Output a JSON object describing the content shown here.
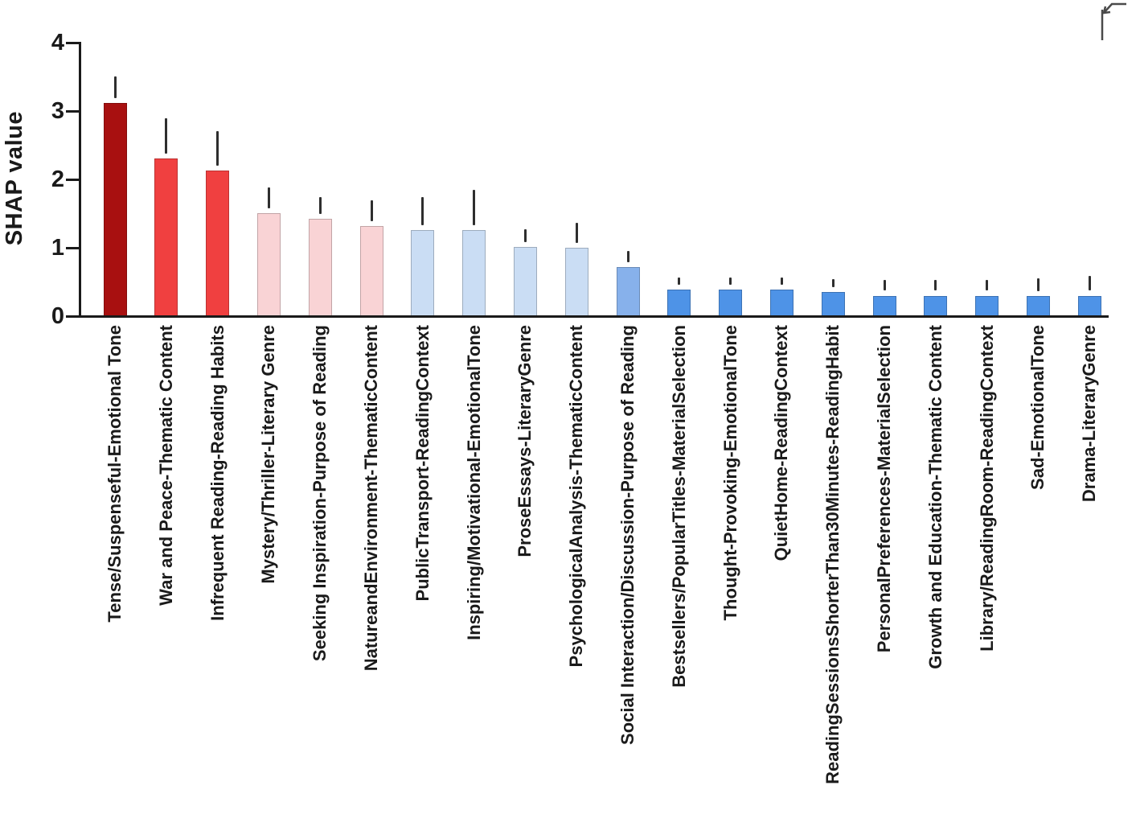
{
  "ui": {
    "corner_icon": "return-left-arrow-icon"
  },
  "chart_data": {
    "type": "bar",
    "title": "",
    "xlabel": "",
    "ylabel": "SHAP value",
    "ylim": [
      0,
      4
    ],
    "yticks": [
      0,
      1,
      2,
      3,
      4
    ],
    "grid": false,
    "legend": "none",
    "error_bars": "upper-only-vertical-lines",
    "error_bar_color": "#2e2e2e",
    "axis_color": "#1a1a1a",
    "categories": [
      "Tense/Suspenseful-Emotional Tone",
      "War and Peace-Thematic Content",
      "Infrequent Reading-Reading Habits",
      "Mystery/Thriller-Literary Genre",
      "Seeking Inspiration-Purpose of Reading",
      "NatureandEnvironment-ThematicContent",
      "PublicTransport-ReadingContext",
      "Inspiring/Motivational-EmotionalTone",
      "ProseEssays-LiteraryGenre",
      "PsychologicalAnalysis-ThematicContent",
      "Social Interaction/Discussion-Purpose of Reading",
      "Bestsellers/PopularTitles-MaterialSelection",
      "Thought-Provoking-EmotionalTone",
      "QuietHome-ReadingContext",
      "ReadingSessionsShorterThan30Minutes-ReadingHabit",
      "PersonalPreferences-MaterialSelection",
      "Growth and Education-Thematic Content",
      "Library/ReadingRoom-ReadingContext",
      "Sad-EmotionalTone",
      "Drama-LiteraryGenre"
    ],
    "values": [
      3.12,
      2.31,
      2.13,
      1.51,
      1.42,
      1.32,
      1.26,
      1.26,
      1.01,
      1.0,
      0.72,
      0.39,
      0.39,
      0.39,
      0.35,
      0.3,
      0.3,
      0.3,
      0.3,
      0.3
    ],
    "error_top": [
      3.51,
      2.89,
      2.71,
      1.88,
      1.74,
      1.69,
      1.74,
      1.85,
      1.27,
      1.36,
      0.95,
      0.56,
      0.56,
      0.56,
      0.54,
      0.53,
      0.53,
      0.53,
      0.55,
      0.59
    ],
    "bar_colors": [
      "#a81010",
      "#f04040",
      "#f04040",
      "#f9d3d5",
      "#f9d3d5",
      "#f9d3d5",
      "#caddf4",
      "#caddf4",
      "#caddf4",
      "#caddf4",
      "#87b1eb",
      "#4e93e7",
      "#4e93e7",
      "#4e93e7",
      "#4e93e7",
      "#4e93e7",
      "#4e93e7",
      "#4e93e7",
      "#4e93e7",
      "#4e93e7"
    ]
  }
}
